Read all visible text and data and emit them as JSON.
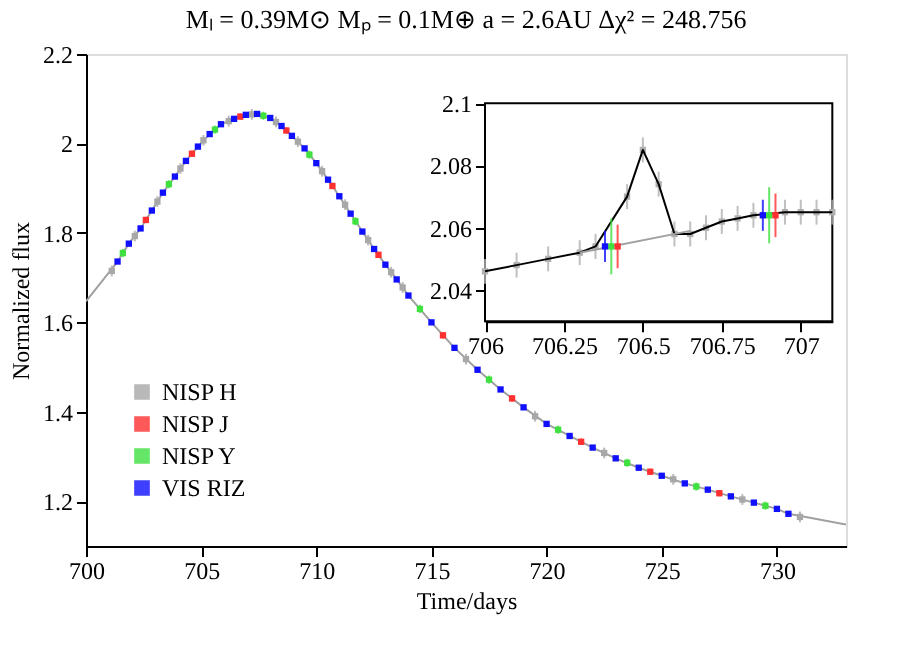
{
  "chart_data": [
    {
      "type": "scatter",
      "title": "Mₗ = 0.39M⊙  Mₚ = 0.1M⊕   a = 2.6AU  Δχ² = 248.756",
      "xlabel": "Time/days",
      "ylabel": "Normalized flux",
      "xlim": [
        700,
        733
      ],
      "ylim": [
        1.1,
        2.2
      ],
      "xticks": [
        700,
        705,
        710,
        715,
        720,
        725,
        730
      ],
      "yticks": [
        1.2,
        1.4,
        1.6,
        1.8,
        2,
        2.2
      ],
      "grid": false,
      "legend": "bottom left",
      "series": [
        {
          "type": "line",
          "color": "#a0a0a0",
          "x": [
            700,
            701.37,
            701.86,
            702.37,
            702.86,
            703.34,
            703.86,
            704.34,
            704.86,
            705.37,
            705.86,
            706.43,
            706.94,
            707.43,
            708.0,
            708.49,
            708.94,
            709.49,
            710.0,
            710.51,
            711.0,
            711.49,
            712.0,
            712.51,
            713.0,
            713.49,
            714,
            715,
            716,
            717,
            718,
            719,
            720,
            721,
            722,
            723,
            724,
            725,
            726,
            727,
            728,
            729,
            730,
            730.5,
            733
          ],
          "values": [
            1.647,
            1.736,
            1.776,
            1.81,
            1.85,
            1.89,
            1.926,
            1.961,
            1.993,
            2.021,
            2.043,
            2.055,
            2.064,
            2.066,
            2.057,
            2.039,
            2.017,
            1.989,
            1.956,
            1.919,
            1.882,
            1.843,
            1.803,
            1.764,
            1.729,
            1.696,
            1.66,
            1.6,
            1.543,
            1.494,
            1.45,
            1.41,
            1.373,
            1.346,
            1.32,
            1.296,
            1.275,
            1.257,
            1.24,
            1.226,
            1.211,
            1.197,
            1.183,
            1.172,
            1.148
          ]
        },
        {
          "name": "NISP H",
          "color": "#a8a8a8",
          "marker": "square",
          "x": [
            701.12,
            702.12,
            703.1,
            704.1,
            705.1,
            706.2,
            707.2,
            708.25,
            709.2,
            710.25,
            711.25,
            712.25,
            713.25,
            713.75,
            716.5,
            719.5,
            722.5,
            725.5,
            728.5,
            731
          ],
          "values": [
            1.715,
            1.793,
            1.87,
            1.944,
            2.007,
            2.05,
            2.065,
            2.048,
            2.004,
            1.938,
            1.863,
            1.784,
            1.712,
            1.678,
            1.518,
            1.39,
            1.308,
            1.249,
            1.204,
            1.165
          ],
          "errors": [
            0.012,
            0.012,
            0.012,
            0.012,
            0.012,
            0.012,
            0.012,
            0.012,
            0.012,
            0.012,
            0.012,
            0.012,
            0.012,
            0.012,
            0.012,
            0.012,
            0.012,
            0.012,
            0.012,
            0.012
          ]
        },
        {
          "name": "NISP J",
          "color": "#ff3030",
          "marker": "square",
          "x": [
            702.6,
            704.6,
            706.7,
            708.7,
            710.7,
            712.7,
            715.5,
            718.5,
            721.5,
            724.5,
            727.5
          ],
          "values": [
            1.829,
            1.977,
            2.06,
            2.029,
            1.905,
            1.751,
            1.571,
            1.43,
            1.333,
            1.266,
            1.218
          ],
          "errors": [
            0.007,
            0.007,
            0.007,
            0.007,
            0.007,
            0.007,
            0.007,
            0.007,
            0.007,
            0.007,
            0.007
          ]
        },
        {
          "name": "NISP Y",
          "color": "#40e040",
          "marker": "square",
          "x": [
            701.6,
            703.6,
            705.6,
            707.7,
            709.7,
            711.7,
            714.5,
            717.5,
            720.5,
            723.5,
            726.5,
            729.5
          ],
          "values": [
            1.755,
            1.909,
            2.031,
            2.062,
            1.975,
            1.826,
            1.63,
            1.472,
            1.36,
            1.286,
            1.233,
            1.19
          ],
          "errors": [
            0.009,
            0.009,
            0.009,
            0.009,
            0.009,
            0.009,
            0.009,
            0.009,
            0.009,
            0.009,
            0.009,
            0.009
          ]
        },
        {
          "name": "VIS RIZ",
          "color": "#1010ff",
          "marker": "square",
          "x": [
            701.37,
            701.86,
            702.37,
            702.86,
            703.34,
            703.86,
            704.34,
            704.86,
            705.37,
            705.86,
            706.43,
            706.94,
            707.43,
            708.0,
            708.49,
            708.94,
            709.49,
            710.0,
            710.51,
            711.0,
            711.49,
            712.0,
            712.51,
            713.0,
            713.49,
            714,
            715,
            716,
            717,
            718,
            719,
            720,
            721,
            722,
            723,
            724,
            725,
            726,
            727,
            728,
            729,
            730,
            730.5
          ],
          "values": [
            1.736,
            1.776,
            1.81,
            1.85,
            1.89,
            1.926,
            1.961,
            1.993,
            2.021,
            2.043,
            2.055,
            2.064,
            2.066,
            2.057,
            2.039,
            2.017,
            1.989,
            1.956,
            1.919,
            1.882,
            1.843,
            1.803,
            1.764,
            1.729,
            1.696,
            1.66,
            1.6,
            1.543,
            1.494,
            1.45,
            1.41,
            1.373,
            1.346,
            1.32,
            1.296,
            1.275,
            1.257,
            1.24,
            1.226,
            1.211,
            1.197,
            1.183,
            1.172
          ],
          "errors": [
            0.005,
            0.005,
            0.005,
            0.005,
            0.005,
            0.005,
            0.005,
            0.005,
            0.005,
            0.005,
            0.005,
            0.005,
            0.005,
            0.005,
            0.005,
            0.005,
            0.005,
            0.005,
            0.005,
            0.005,
            0.005,
            0.005,
            0.005,
            0.005,
            0.005,
            0.005,
            0.005,
            0.005,
            0.005,
            0.005,
            0.005,
            0.005,
            0.005,
            0.005,
            0.005,
            0.005,
            0.005,
            0.005,
            0.005,
            0.005,
            0.005,
            0.005,
            0.005
          ]
        }
      ]
    },
    {
      "type": "scatter",
      "xlim": [
        706,
        707.1
      ],
      "ylim": [
        2.03,
        2.1
      ],
      "xticks": [
        706,
        706.25,
        706.5,
        706.75,
        707
      ],
      "yticks": [
        2.04,
        2.06,
        2.08,
        2.1
      ],
      "grid": false,
      "x": [
        706,
        706.1,
        706.2,
        706.3,
        706.35,
        706.45,
        706.5,
        706.55,
        706.6,
        706.65,
        706.7,
        706.75,
        706.8,
        706.85,
        706.95,
        707,
        707.05,
        707.1
      ],
      "series": [
        {
          "color": "#b0b0b0",
          "marker": "square",
          "values": [
            2.046,
            2.048,
            2.05,
            2.052,
            2.054,
            2.07,
            2.085,
            2.074,
            2.058,
            2.058,
            2.06,
            2.062,
            2.063,
            2.064,
            2.065,
            2.065,
            2.065,
            2.065
          ],
          "errors": [
            0.004,
            0.004,
            0.004,
            0.004,
            0.004,
            0.004,
            0.004,
            0.004,
            0.004,
            0.004,
            0.004,
            0.004,
            0.004,
            0.004,
            0.004,
            0.004,
            0.004,
            0.004
          ]
        },
        {
          "type": "line",
          "color": "#000000",
          "values": [
            2.046,
            2.048,
            2.05,
            2.052,
            2.054,
            2.07,
            2.085,
            2.074,
            2.058,
            2.058,
            2.06,
            2.062,
            2.063,
            2.064,
            2.065,
            2.065,
            2.065,
            2.065
          ]
        },
        {
          "type": "line",
          "color": "#a0a0a0",
          "x": [
            706.3,
            706.65
          ],
          "values": [
            2.052,
            2.059
          ]
        },
        {
          "color": "#40e040",
          "marker": "square",
          "x": [
            706.4,
            706.9
          ],
          "values": [
            2.054,
            2.064
          ],
          "errors": [
            0.009,
            0.009
          ]
        },
        {
          "color": "#ff3030",
          "marker": "square",
          "x": [
            706.42,
            706.92
          ],
          "values": [
            2.054,
            2.064
          ],
          "errors": [
            0.007,
            0.007
          ]
        },
        {
          "color": "#1010ff",
          "marker": "square",
          "x": [
            706.38,
            706.88
          ],
          "values": [
            2.054,
            2.064
          ],
          "errors": [
            0.005,
            0.005
          ]
        }
      ]
    }
  ]
}
